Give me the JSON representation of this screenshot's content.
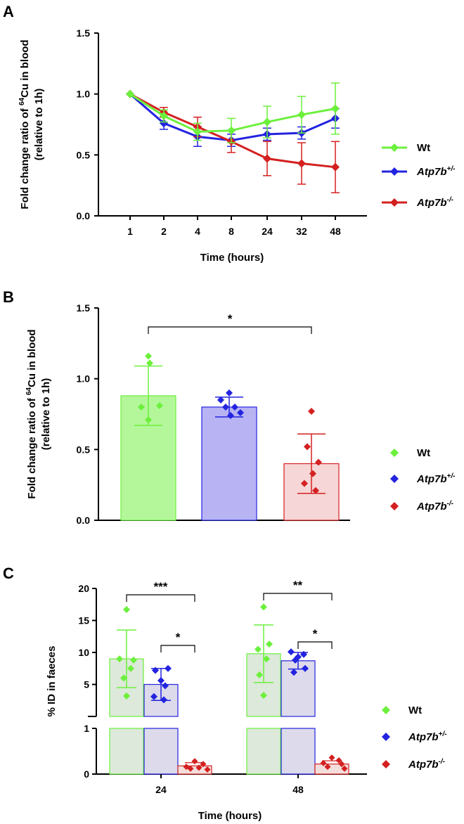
{
  "colors": {
    "wt": "#6CF03C",
    "het": "#2323E0",
    "ko": "#D42020",
    "wt_bar_b": "#B4F79A",
    "het_bar_b": "#B8B4F4",
    "ko_bar_b": "#F6D6D6",
    "wt_bar_c": "#DDE9DA",
    "het_bar_c": "#DCDAEB",
    "ko_bar_c": "#F3DEDC"
  },
  "legend": {
    "wt": "Wt",
    "gene": "Atp7b",
    "het_sup": "+/-",
    "ko_sup": "-/-"
  },
  "chart_data": [
    {
      "panel": "A",
      "type": "line",
      "ylabel_line1_pre": "Fold change ratio of ",
      "ylabel_sup": "64",
      "ylabel_line1_post": "Cu in blood",
      "ylabel_line2": "(relative to 1h)",
      "xlabel": "Time (hours)",
      "categories": [
        "1",
        "2",
        "4",
        "8",
        "24",
        "32",
        "48"
      ],
      "ylim": [
        0,
        1.5
      ],
      "yticks": [
        "0.0",
        "0.5",
        "1.0",
        "1.5"
      ],
      "series": [
        {
          "name": "Wt",
          "key": "wt",
          "values": [
            1.0,
            0.82,
            0.69,
            0.7,
            0.77,
            0.83,
            0.88
          ],
          "err": [
            0,
            0.05,
            0.07,
            0.1,
            0.13,
            0.15,
            0.21
          ]
        },
        {
          "name": "Atp7b+/-",
          "key": "het",
          "values": [
            1.0,
            0.76,
            0.65,
            0.62,
            0.67,
            0.68,
            0.8
          ],
          "err": [
            0,
            0.05,
            0.08,
            0.05,
            0.05,
            0.05,
            0.08
          ]
        },
        {
          "name": "Atp7b-/-",
          "key": "ko",
          "values": [
            1.0,
            0.85,
            0.73,
            0.61,
            0.47,
            0.43,
            0.4
          ],
          "err": [
            0,
            0.04,
            0.08,
            0.09,
            0.14,
            0.17,
            0.21
          ]
        }
      ]
    },
    {
      "panel": "B",
      "type": "bar",
      "ylabel_line1_pre": "Fold change ratio of ",
      "ylabel_sup": "64",
      "ylabel_line1_post": "Cu in blood",
      "ylabel_line2": "(relative to 1h)",
      "ylim": [
        0,
        1.5
      ],
      "yticks": [
        "0.0",
        "0.5",
        "1.0",
        "1.5"
      ],
      "series": [
        {
          "name": "Wt",
          "key": "wt",
          "mean": 0.88,
          "sd": 0.21,
          "points": [
            1.16,
            1.11,
            0.81,
            0.8,
            0.71
          ]
        },
        {
          "name": "Atp7b+/-",
          "key": "het",
          "mean": 0.8,
          "sd": 0.07,
          "points": [
            0.9,
            0.85,
            0.8,
            0.8,
            0.76,
            0.74
          ]
        },
        {
          "name": "Atp7b-/-",
          "key": "ko",
          "mean": 0.4,
          "sd": 0.21,
          "points": [
            0.77,
            0.52,
            0.41,
            0.33,
            0.26,
            0.21
          ]
        }
      ],
      "annotations": [
        {
          "label": "*",
          "from": 0,
          "to": 2
        }
      ]
    },
    {
      "panel": "C",
      "type": "bar",
      "ylabel": "% ID in faeces",
      "xlabel": "Time (hours)",
      "categories": [
        "24",
        "48"
      ],
      "yaxis_break": {
        "lower": [
          0,
          1
        ],
        "upper": [
          0,
          20
        ]
      },
      "yticks_upper": [
        "5",
        "10",
        "15",
        "20"
      ],
      "yticks_lower": [
        "0",
        "1"
      ],
      "series": [
        {
          "name": "Wt",
          "key": "wt",
          "mean": [
            9.0,
            9.8
          ],
          "sd": [
            4.5,
            4.5
          ],
          "points": [
            [
              16.7,
              9.0,
              8.8,
              7.5,
              6.0,
              3.2
            ],
            [
              17.1,
              11.3,
              10.5,
              9.0,
              6.5,
              3.3
            ]
          ]
        },
        {
          "name": "Atp7b+/-",
          "key": "het",
          "mean": [
            5.0,
            8.7
          ],
          "sd": [
            2.5,
            1.3
          ],
          "points": [
            [
              7.5,
              7.2,
              5.6,
              4.8,
              3.1,
              2.6
            ],
            [
              10.1,
              9.7,
              9.3,
              8.8,
              7.5,
              6.9
            ]
          ]
        },
        {
          "name": "Atp7b-/-",
          "key": "ko",
          "mean": [
            0.18,
            0.22
          ],
          "sd": [
            0.07,
            0.07
          ],
          "points": [
            [
              0.28,
              0.22,
              0.16,
              0.14,
              0.12,
              0.1
            ],
            [
              0.36,
              0.3,
              0.24,
              0.22,
              0.16,
              0.12
            ]
          ]
        }
      ],
      "annotations": [
        {
          "label": "***",
          "group": "24",
          "from": "Wt",
          "to": "Atp7b-/-"
        },
        {
          "label": "*",
          "group": "24",
          "from": "Atp7b+/-",
          "to": "Atp7b-/-"
        },
        {
          "label": "**",
          "group": "48",
          "from": "Wt",
          "to": "Atp7b-/-"
        },
        {
          "label": "*",
          "group": "48",
          "from": "Atp7b+/-",
          "to": "Atp7b-/-"
        }
      ]
    }
  ]
}
